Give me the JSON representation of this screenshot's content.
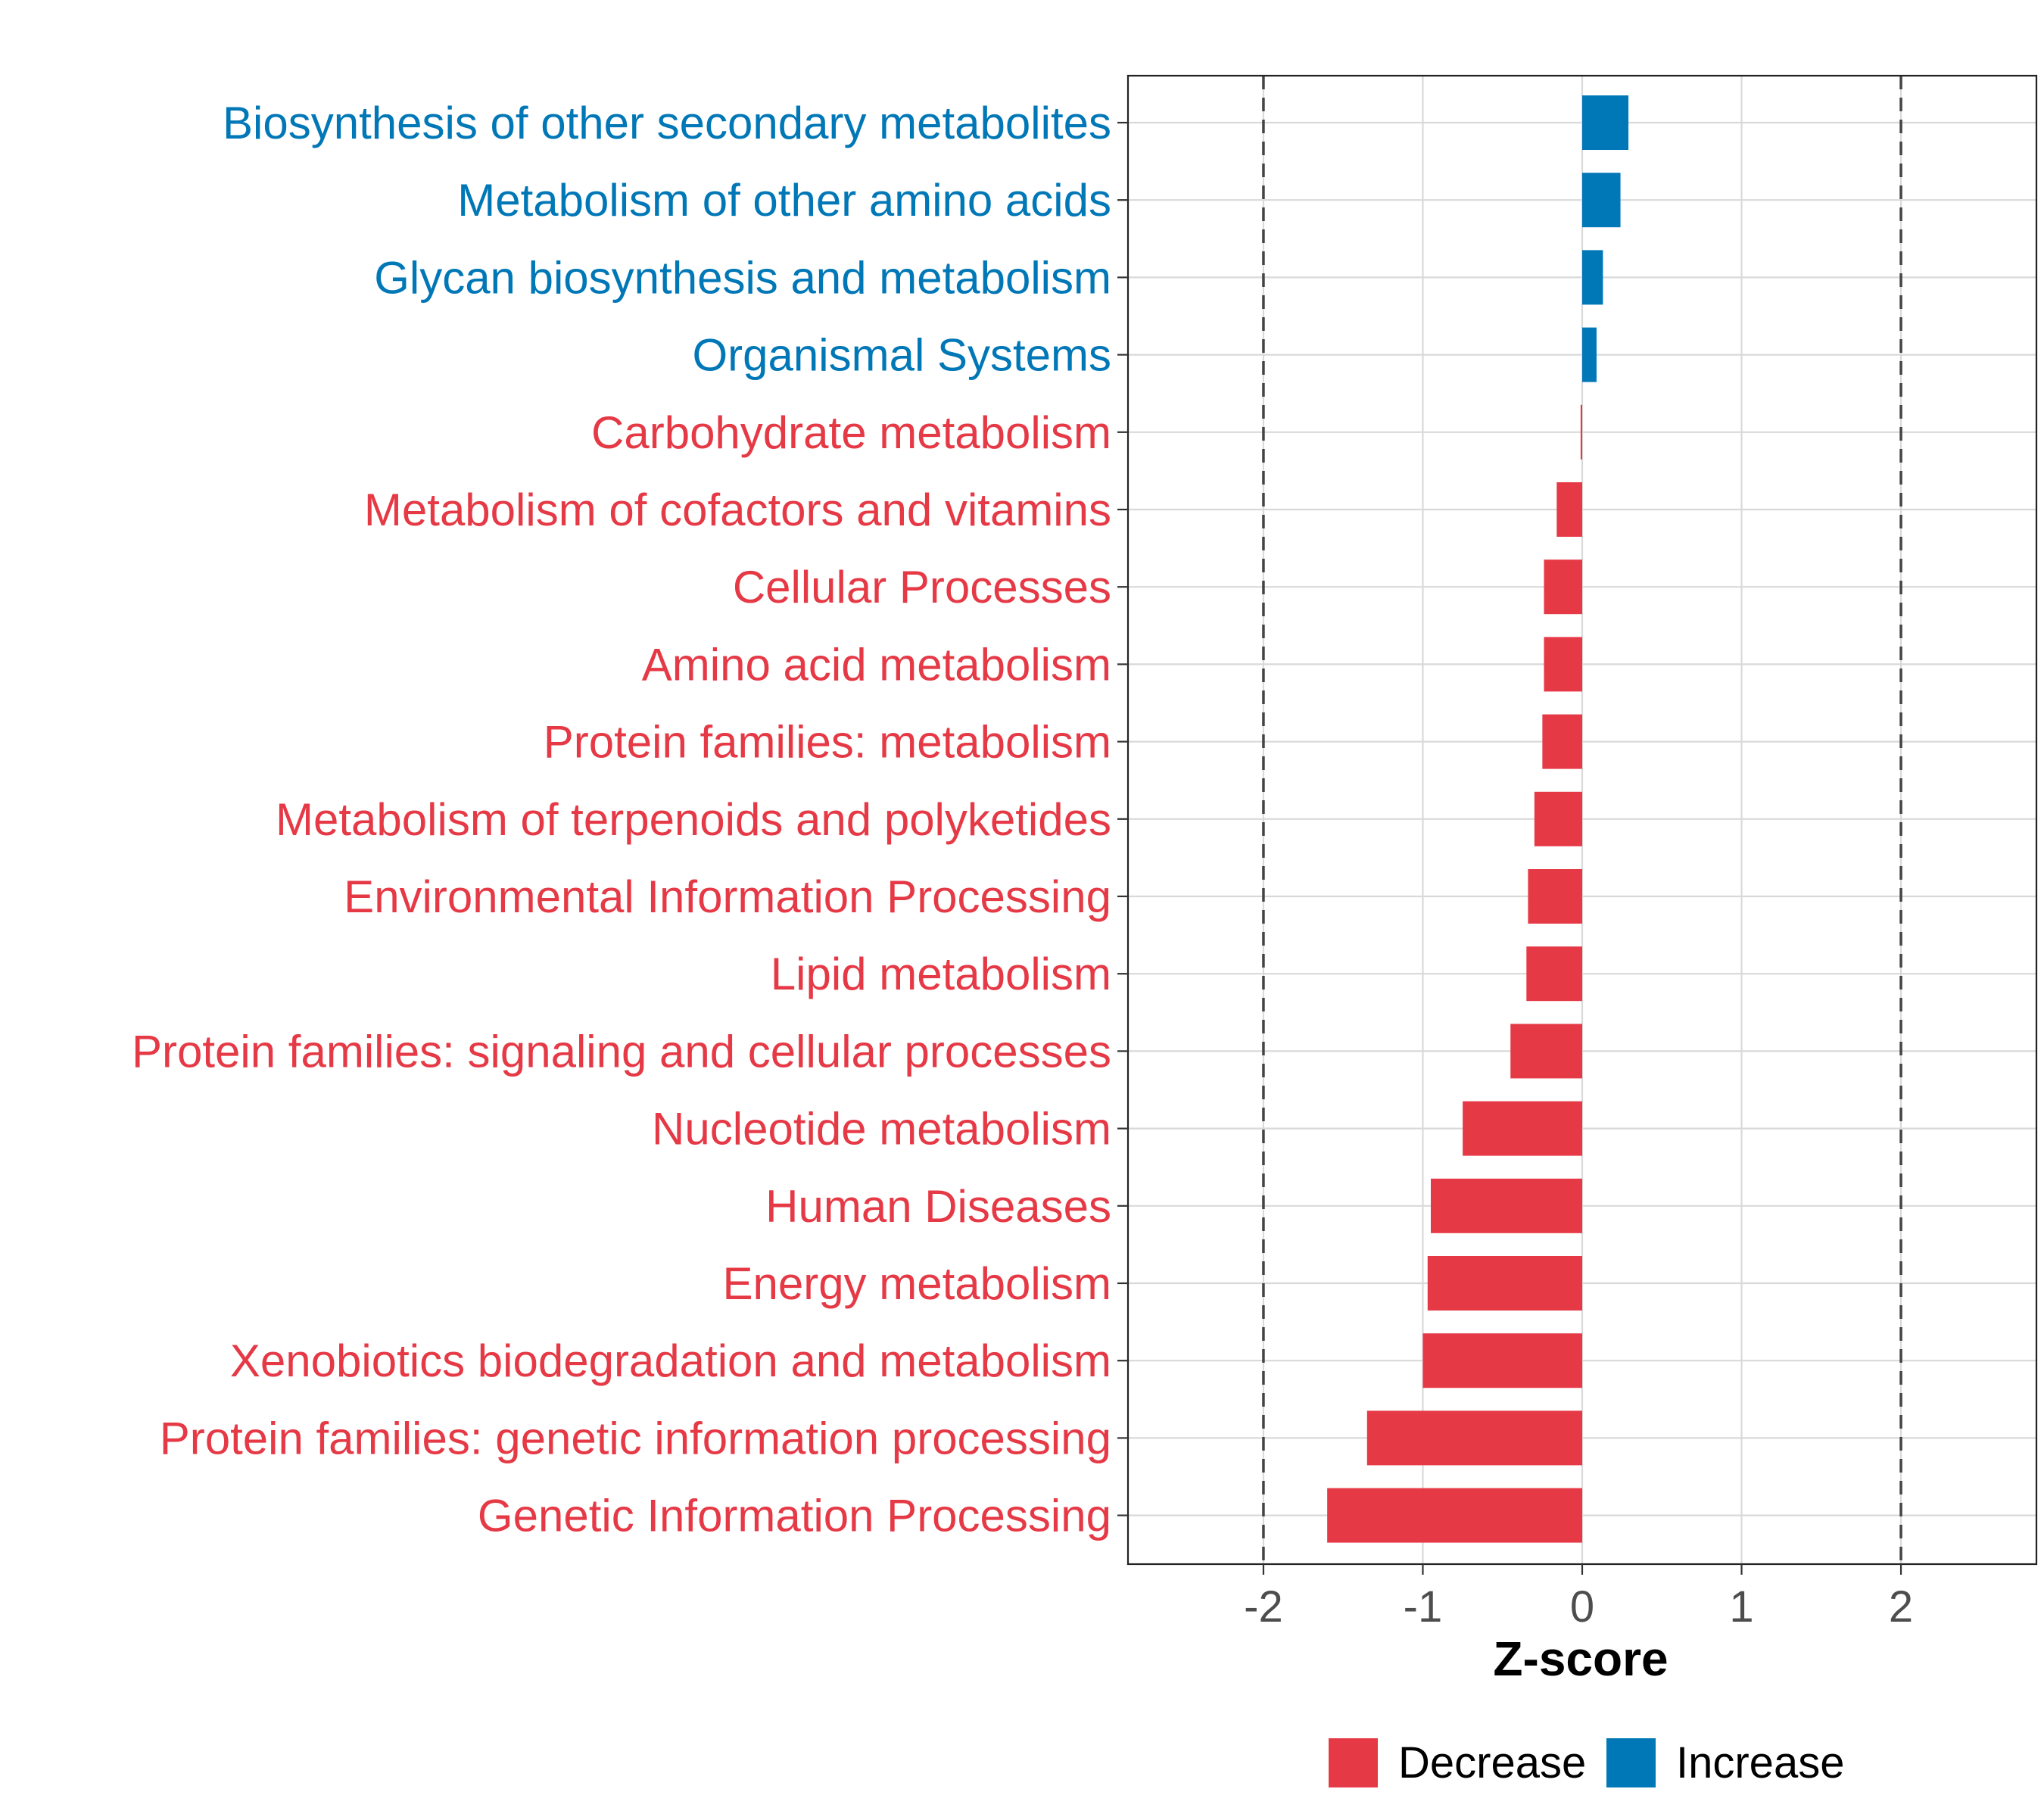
{
  "chart_data": {
    "type": "bar",
    "orientation": "horizontal",
    "title": "",
    "xlabel": "Z-score",
    "ylabel": "",
    "xlim": [
      -2.85,
      2.85
    ],
    "x_ticks": [
      -2,
      -1,
      0,
      1,
      2
    ],
    "x_tick_labels": [
      "-2",
      "-1",
      "0",
      "1",
      "2"
    ],
    "reference_lines": [
      -2,
      2
    ],
    "grid": true,
    "legend_position": "bottom",
    "colors": {
      "Decrease": "#e63946",
      "Increase": "#0077b6"
    },
    "categories": [
      "Biosynthesis of other secondary metabolites",
      "Metabolism of other amino acids",
      "Glycan biosynthesis and metabolism",
      "Organismal Systems",
      "Carbohydrate metabolism",
      "Metabolism of cofactors and vitamins",
      "Cellular Processes",
      "Amino acid metabolism",
      "Protein families: metabolism",
      "Metabolism of terpenoids and polyketides",
      "Environmental Information Processing",
      "Lipid metabolism",
      "Protein families: signaling and cellular processes",
      "Nucleotide metabolism",
      "Human Diseases",
      "Energy metabolism",
      "Xenobiotics biodegradation and metabolism",
      "Protein families: genetic information processing",
      "Genetic Information Processing"
    ],
    "values": [
      0.29,
      0.24,
      0.13,
      0.09,
      -0.01,
      -0.16,
      -0.24,
      -0.24,
      -0.25,
      -0.3,
      -0.34,
      -0.35,
      -0.45,
      -0.75,
      -0.95,
      -0.97,
      -1.0,
      -1.35,
      -1.6
    ],
    "groups": [
      "Increase",
      "Increase",
      "Increase",
      "Increase",
      "Decrease",
      "Decrease",
      "Decrease",
      "Decrease",
      "Decrease",
      "Decrease",
      "Decrease",
      "Decrease",
      "Decrease",
      "Decrease",
      "Decrease",
      "Decrease",
      "Decrease",
      "Decrease",
      "Decrease"
    ],
    "legend": [
      "Decrease",
      "Increase"
    ]
  }
}
